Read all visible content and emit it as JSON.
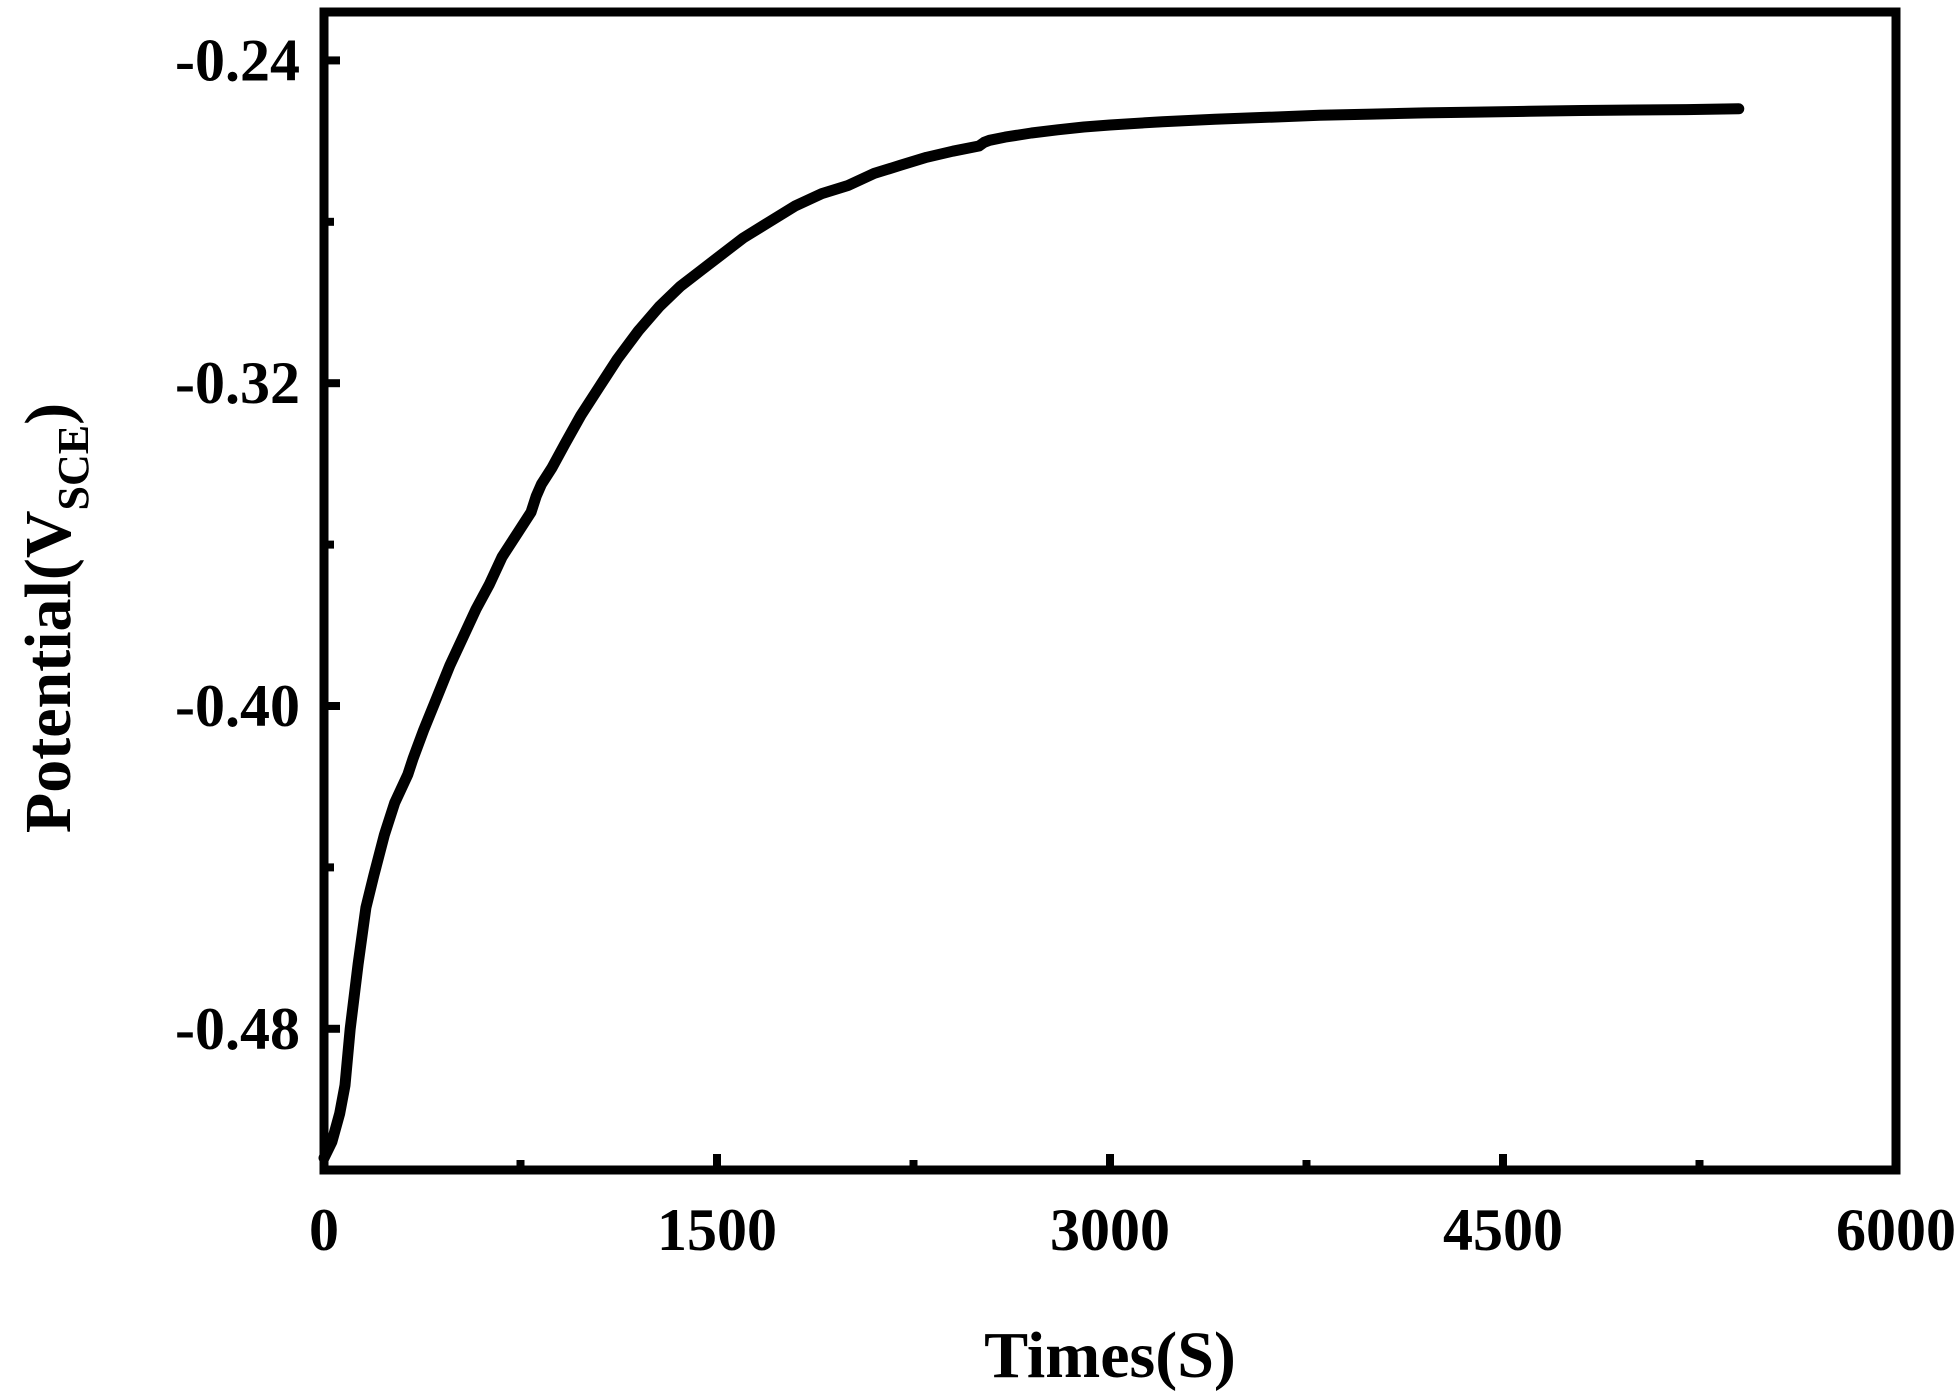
{
  "chart_data": {
    "type": "line",
    "xlabel": "Times(S)",
    "ylabel_main": "Potential(V",
    "ylabel_sub": "SCE",
    "ylabel_close": ")",
    "xlim": [
      0,
      6000
    ],
    "ylim": [
      -0.515,
      -0.228
    ],
    "xticks": [
      0,
      1500,
      3000,
      4500,
      6000
    ],
    "xtick_labels": [
      "0",
      "1500",
      "3000",
      "4500",
      "6000"
    ],
    "yticks": [
      -0.24,
      -0.32,
      -0.4,
      -0.48
    ],
    "ytick_labels": [
      "-0.24",
      "-0.32",
      "-0.40",
      "-0.48"
    ],
    "x_minor_ticks": [
      750,
      2250,
      3750,
      5250
    ],
    "y_minor_ticks": [
      -0.28,
      -0.36,
      -0.44
    ],
    "grid": false,
    "line_color": "#000000",
    "series": [
      {
        "x": [
          0,
          30,
          60,
          80,
          100,
          130,
          160,
          190,
          230,
          270,
          320,
          340,
          380,
          430,
          480,
          530,
          580,
          630,
          680,
          740,
          790,
          810,
          830,
          870,
          920,
          980,
          1050,
          1120,
          1200,
          1280,
          1360,
          1440,
          1520,
          1600,
          1700,
          1800,
          1900,
          2000,
          2100,
          2200,
          2300,
          2400,
          2500,
          2520,
          2540,
          2600,
          2700,
          2800,
          2900,
          3000,
          3200,
          3400,
          3600,
          3800,
          4000,
          4200,
          4400,
          4600,
          4800,
          5000,
          5200,
          5400
        ],
        "y": [
          -0.512,
          -0.508,
          -0.501,
          -0.494,
          -0.48,
          -0.464,
          -0.45,
          -0.442,
          -0.432,
          -0.424,
          -0.417,
          -0.413,
          -0.406,
          -0.398,
          -0.39,
          -0.383,
          -0.376,
          -0.37,
          -0.363,
          -0.357,
          -0.352,
          -0.348,
          -0.345,
          -0.341,
          -0.335,
          -0.328,
          -0.321,
          -0.314,
          -0.307,
          -0.301,
          -0.296,
          -0.292,
          -0.288,
          -0.284,
          -0.28,
          -0.276,
          -0.273,
          -0.271,
          -0.268,
          -0.266,
          -0.264,
          -0.2625,
          -0.2612,
          -0.2603,
          -0.2598,
          -0.259,
          -0.258,
          -0.2572,
          -0.2565,
          -0.256,
          -0.2552,
          -0.2546,
          -0.2541,
          -0.2536,
          -0.2533,
          -0.253,
          -0.2528,
          -0.2526,
          -0.2524,
          -0.2523,
          -0.2522,
          -0.252
        ]
      }
    ]
  }
}
